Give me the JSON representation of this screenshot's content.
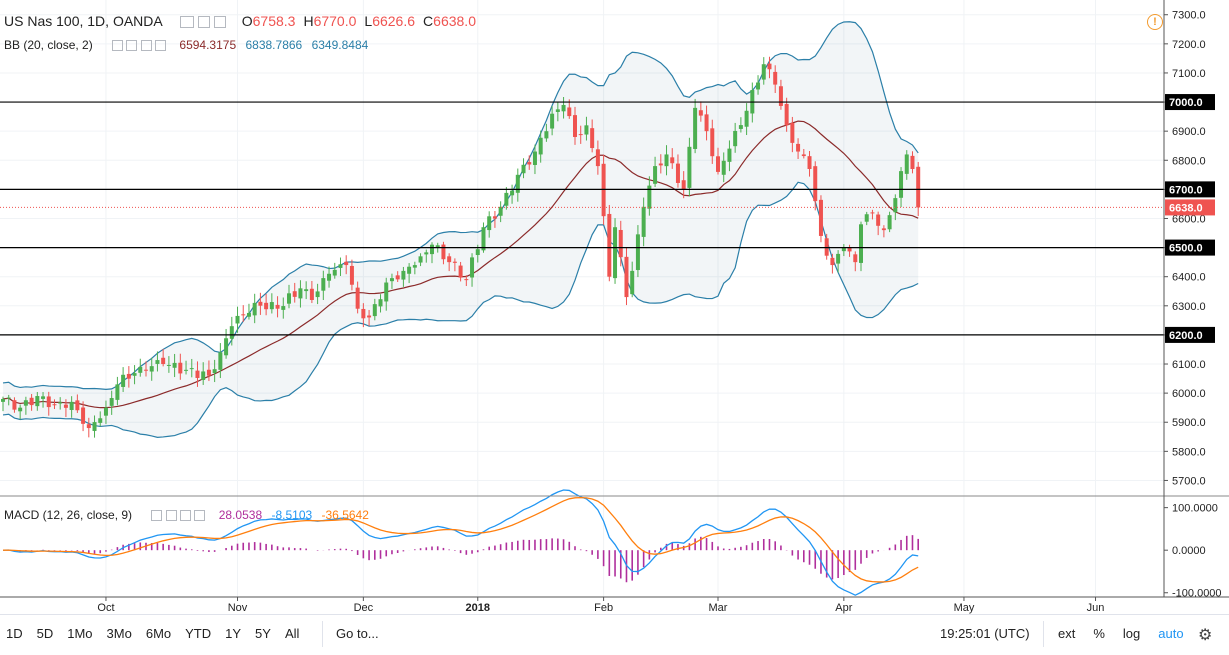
{
  "header": {
    "symbol": "US Nas 100, 1D, OANDA",
    "ohlc": [
      {
        "key": "O",
        "value": "6758.3"
      },
      {
        "key": "H",
        "value": "6770.0"
      },
      {
        "key": "L",
        "value": "6626.6"
      },
      {
        "key": "C",
        "value": "6638.0"
      }
    ],
    "warning_icon": "alert-circle-icon"
  },
  "bb_legend": {
    "label": "BB (20, close, 2)",
    "values": [
      "6594.3175",
      "6838.7866",
      "6349.8484"
    ]
  },
  "macd_legend": {
    "label": "MACD (12, 26, close, 9)",
    "values": [
      "28.0538",
      "-8.5103",
      "-36.5642"
    ]
  },
  "price_axis": {
    "ticks": [
      "5700.0",
      "5800.0",
      "5900.0",
      "6000.0",
      "6100.0",
      "6200.0",
      "6300.0",
      "6400.0",
      "6500.0",
      "6600.0",
      "6700.0",
      "6800.0",
      "6900.0",
      "7000.0",
      "7100.0",
      "7200.0",
      "7300.0"
    ],
    "labels": [
      {
        "text": "7000.0",
        "value": 7000,
        "style": "line"
      },
      {
        "text": "6700.0",
        "value": 6700,
        "style": "line"
      },
      {
        "text": "6638.0",
        "value": 6638,
        "style": "last"
      },
      {
        "text": "6500.0",
        "value": 6500,
        "style": "line"
      },
      {
        "text": "6200.0",
        "value": 6200,
        "style": "line"
      }
    ]
  },
  "macd_axis": {
    "ticks": [
      {
        "text": "100.0000",
        "value": 100
      },
      {
        "text": "0.0000",
        "value": 0
      },
      {
        "text": "-100.0000",
        "value": -100
      }
    ]
  },
  "time_axis": {
    "labels": [
      {
        "text": "Oct",
        "index": 18
      },
      {
        "text": "Nov",
        "index": 41
      },
      {
        "text": "Dec",
        "index": 63
      },
      {
        "text": "2018",
        "index": 83,
        "bold": true
      },
      {
        "text": "Feb",
        "index": 105
      },
      {
        "text": "Mar",
        "index": 125
      },
      {
        "text": "Apr",
        "index": 147
      },
      {
        "text": "May",
        "index": 168
      },
      {
        "text": "Jun",
        "index": 191
      }
    ]
  },
  "bottom_toolbar": {
    "ranges": [
      "1D",
      "5D",
      "1Mo",
      "3Mo",
      "6Mo",
      "YTD",
      "1Y",
      "5Y",
      "All"
    ],
    "goto": "Go to...",
    "time": "19:25:01 (UTC)",
    "options": [
      "ext",
      "%",
      "log",
      "auto"
    ],
    "settings_icon": "gear-icon"
  },
  "colors": {
    "up": "#4caf50",
    "down": "#ef5350",
    "bb": "#2b7fa8",
    "basis": "#8b2a2a",
    "macd": "#2196f3",
    "signal": "#ff7f0e",
    "hist": "#b02f9c"
  },
  "chart_data": {
    "type": "candlestick",
    "price_range": [
      5650,
      7330
    ],
    "macd_range": [
      -110,
      125
    ],
    "hlines": [
      7000,
      6700,
      6500,
      6200
    ],
    "last_price": 6638,
    "anchors": [
      [
        0,
        5980
      ],
      [
        3,
        5950
      ],
      [
        6,
        5990
      ],
      [
        9,
        5960
      ],
      [
        12,
        5970
      ],
      [
        15,
        5880
      ],
      [
        18,
        5950
      ],
      [
        20,
        6030
      ],
      [
        24,
        6090
      ],
      [
        28,
        6100
      ],
      [
        32,
        6080
      ],
      [
        36,
        6060
      ],
      [
        38,
        6140
      ],
      [
        40,
        6230
      ],
      [
        44,
        6310
      ],
      [
        48,
        6290
      ],
      [
        52,
        6360
      ],
      [
        54,
        6320
      ],
      [
        57,
        6410
      ],
      [
        60,
        6440
      ],
      [
        62,
        6290
      ],
      [
        64,
        6260
      ],
      [
        67,
        6380
      ],
      [
        70,
        6420
      ],
      [
        73,
        6470
      ],
      [
        75,
        6510
      ],
      [
        78,
        6450
      ],
      [
        81,
        6390
      ],
      [
        84,
        6570
      ],
      [
        87,
        6640
      ],
      [
        90,
        6750
      ],
      [
        93,
        6830
      ],
      [
        96,
        6960
      ],
      [
        98,
        6990
      ],
      [
        100,
        6880
      ],
      [
        102,
        6920
      ],
      [
        104,
        6780
      ],
      [
        106,
        6400
      ],
      [
        107,
        6570
      ],
      [
        109,
        6330
      ],
      [
        110,
        6420
      ],
      [
        112,
        6640
      ],
      [
        114,
        6780
      ],
      [
        116,
        6820
      ],
      [
        119,
        6700
      ],
      [
        121,
        6980
      ],
      [
        123,
        6900
      ],
      [
        125,
        6760
      ],
      [
        127,
        6840
      ],
      [
        130,
        6970
      ],
      [
        133,
        7130
      ],
      [
        135,
        7060
      ],
      [
        137,
        6920
      ],
      [
        139,
        6830
      ],
      [
        141,
        6770
      ],
      [
        143,
        6540
      ],
      [
        145,
        6440
      ],
      [
        147,
        6500
      ],
      [
        149,
        6450
      ],
      [
        150,
        6580
      ],
      [
        152,
        6620
      ],
      [
        154,
        6560
      ],
      [
        156,
        6670
      ],
      [
        158,
        6820
      ],
      [
        159,
        6770
      ],
      [
        160,
        6640
      ]
    ]
  }
}
